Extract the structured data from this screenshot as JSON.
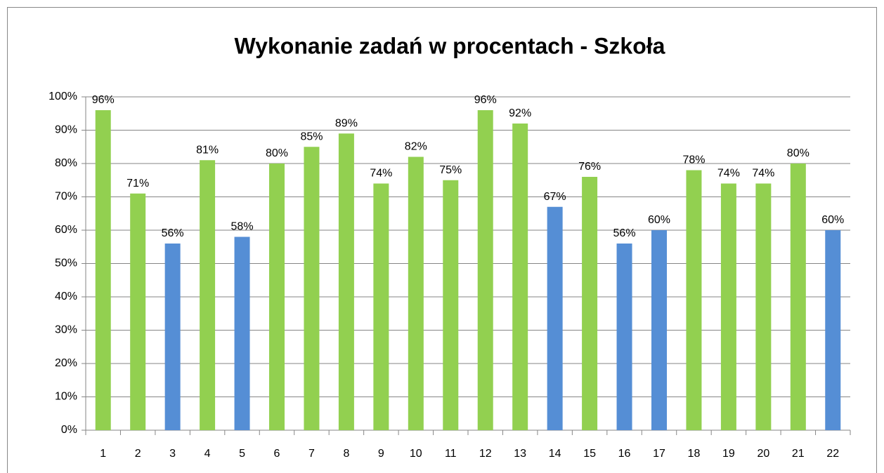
{
  "chart_data": {
    "type": "bar",
    "title": "Wykonanie zadań w procentach - Szkoła",
    "categories": [
      "1",
      "2",
      "3",
      "4",
      "5",
      "6",
      "7",
      "8",
      "9",
      "10",
      "11",
      "12",
      "13",
      "14",
      "15",
      "16",
      "17",
      "18",
      "19",
      "20",
      "21",
      "22"
    ],
    "values": [
      96,
      71,
      56,
      81,
      58,
      80,
      85,
      89,
      74,
      82,
      75,
      96,
      92,
      67,
      76,
      56,
      60,
      78,
      74,
      74,
      80,
      60
    ],
    "value_labels": [
      "96%",
      "71%",
      "56%",
      "81%",
      "58%",
      "80%",
      "85%",
      "89%",
      "74%",
      "82%",
      "75%",
      "96%",
      "92%",
      "67%",
      "76%",
      "56%",
      "60%",
      "78%",
      "74%",
      "74%",
      "80%",
      "60%"
    ],
    "colors": [
      "#92d050",
      "#92d050",
      "#558ed5",
      "#92d050",
      "#558ed5",
      "#92d050",
      "#92d050",
      "#92d050",
      "#92d050",
      "#92d050",
      "#92d050",
      "#92d050",
      "#92d050",
      "#558ed5",
      "#92d050",
      "#558ed5",
      "#558ed5",
      "#92d050",
      "#92d050",
      "#92d050",
      "#92d050",
      "#558ed5"
    ],
    "ylim": [
      0,
      100
    ],
    "yticks": [
      {
        "value": 0,
        "label": "0%"
      },
      {
        "value": 10,
        "label": "10%"
      },
      {
        "value": 20,
        "label": "20%"
      },
      {
        "value": 30,
        "label": "30%"
      },
      {
        "value": 40,
        "label": "40%"
      },
      {
        "value": 50,
        "label": "50%"
      },
      {
        "value": 60,
        "label": "60%"
      },
      {
        "value": 70,
        "label": "70%"
      },
      {
        "value": 80,
        "label": "80%"
      },
      {
        "value": 90,
        "label": "90%"
      },
      {
        "value": 100,
        "label": "100%"
      }
    ],
    "grid": true
  }
}
